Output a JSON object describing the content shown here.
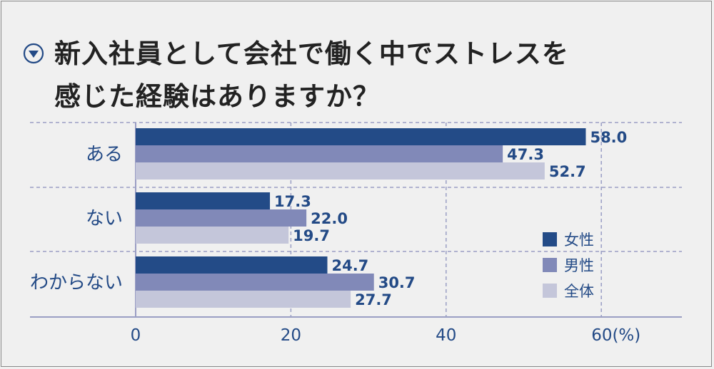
{
  "title": "新入社員として会社で働く中でストレスを\n感じた経験はありますか？",
  "colors": {
    "女性": "#234b87",
    "男性": "#8189b8",
    "全体": "#c4c6da",
    "text": "#234a86",
    "grid": "#9a9ec4"
  },
  "chart_data": {
    "type": "bar",
    "orientation": "horizontal",
    "categories": [
      "ある",
      "ない",
      "わからない"
    ],
    "series": [
      {
        "name": "女性",
        "values": [
          58.0,
          17.3,
          24.7
        ]
      },
      {
        "name": "男性",
        "values": [
          47.3,
          22.0,
          30.7
        ]
      },
      {
        "name": "全体",
        "values": [
          52.7,
          19.7,
          27.7
        ]
      }
    ],
    "data_labels": [
      [
        "58.0",
        "47.3",
        "52.7"
      ],
      [
        "17.3",
        "22.0",
        "19.7"
      ],
      [
        "24.7",
        "30.7",
        "27.7"
      ]
    ],
    "xlim": [
      0,
      70
    ],
    "xticks": [
      0,
      20,
      40,
      60
    ],
    "xtick_labels": [
      "0",
      "20",
      "40",
      "60(%)"
    ],
    "legend": [
      "女性",
      "男性",
      "全体"
    ],
    "legend_position": "bottom-right",
    "grid": true
  }
}
